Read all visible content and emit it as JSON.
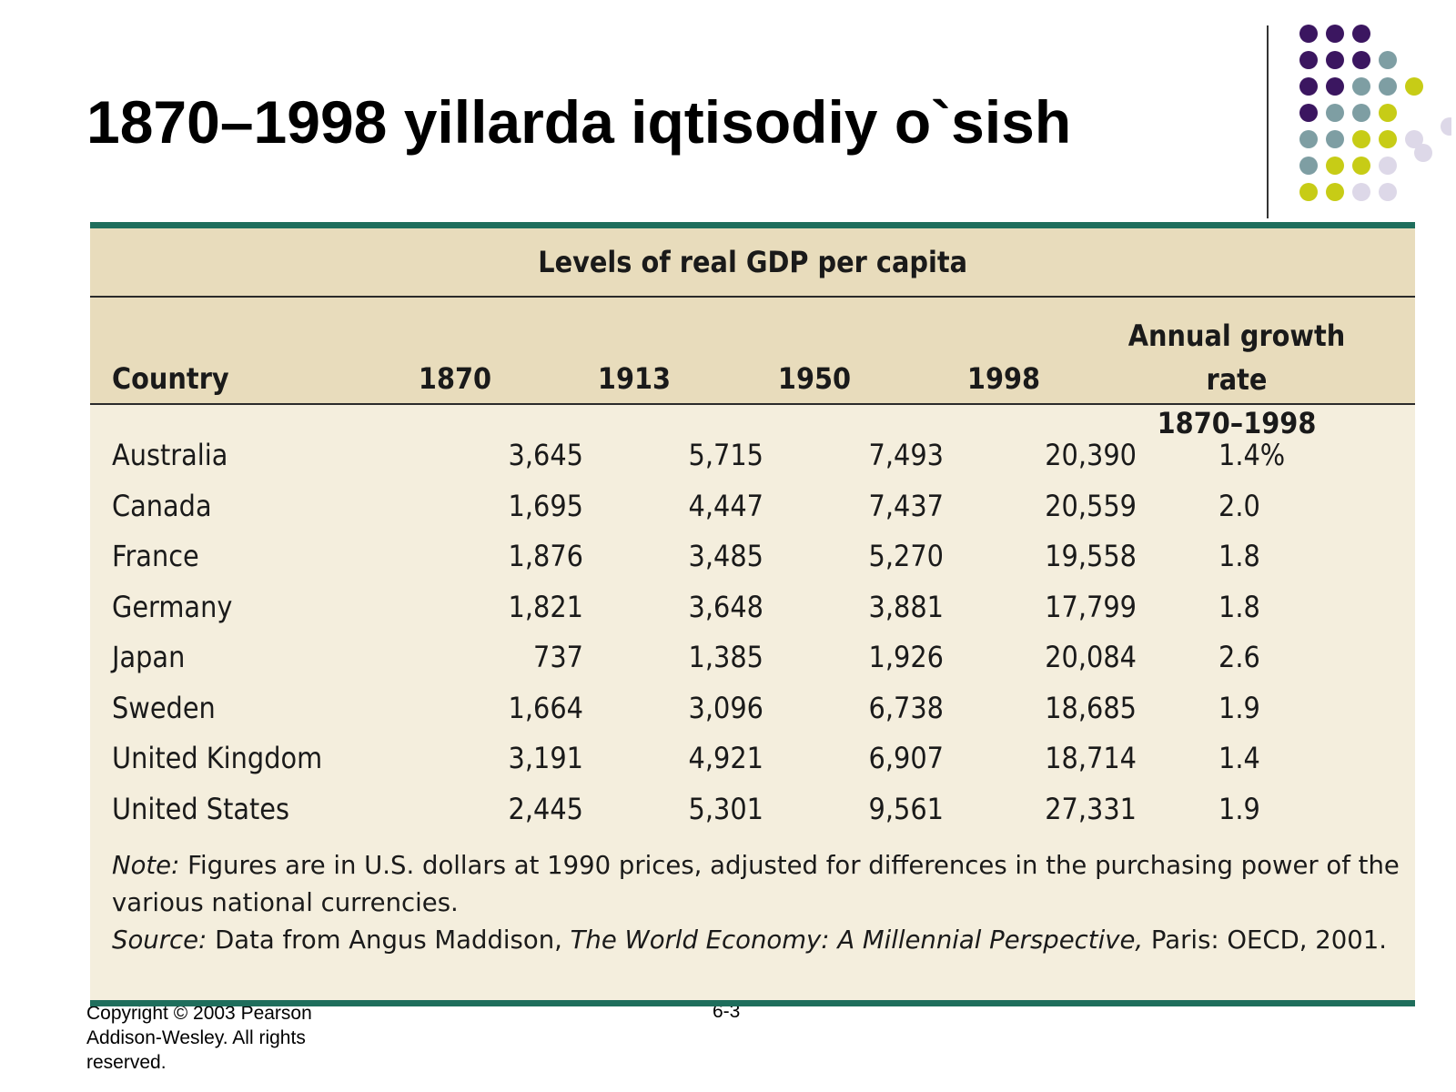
{
  "slide": {
    "title": "1870–1998 yillarda iqtisodiy o`sish",
    "footer": "Copyright © 2003 Pearson Addison-Wesley. All rights reserved.",
    "page_number": "6-3"
  },
  "decoration": {
    "dot_colors": {
      "purple": "#3b1660",
      "teal": "#7e9ea3",
      "lime": "#c7cc16",
      "lavender": "#ddd8e8"
    }
  },
  "table": {
    "title": "Levels of real GDP per capita",
    "headers": {
      "country": "Country",
      "years": [
        "1870",
        "1913",
        "1950",
        "1998"
      ],
      "growth_line1": "Annual growth rate",
      "growth_line2": "1870–1998"
    },
    "rows": [
      {
        "country": "Australia",
        "values": [
          "3,645",
          "5,715",
          "7,493",
          "20,390"
        ],
        "growth": "1.4%"
      },
      {
        "country": "Canada",
        "values": [
          "1,695",
          "4,447",
          "7,437",
          "20,559"
        ],
        "growth": "2.0"
      },
      {
        "country": "France",
        "values": [
          "1,876",
          "3,485",
          "5,270",
          "19,558"
        ],
        "growth": "1.8"
      },
      {
        "country": "Germany",
        "values": [
          "1,821",
          "3,648",
          "3,881",
          "17,799"
        ],
        "growth": "1.8"
      },
      {
        "country": "Japan",
        "values": [
          "737",
          "1,385",
          "1,926",
          "20,084"
        ],
        "growth": "2.6"
      },
      {
        "country": "Sweden",
        "values": [
          "1,664",
          "3,096",
          "6,738",
          "18,685"
        ],
        "growth": "1.9"
      },
      {
        "country": "United Kingdom",
        "values": [
          "3,191",
          "4,921",
          "6,907",
          "18,714"
        ],
        "growth": "1.4"
      },
      {
        "country": "United States",
        "values": [
          "2,445",
          "5,301",
          "9,561",
          "27,331"
        ],
        "growth": "1.9"
      }
    ],
    "note": {
      "label": "Note:",
      "text": "Figures are in U.S. dollars at 1990 prices, adjusted for differences in the purchasing power of the various national currencies."
    },
    "source": {
      "label": "Source:",
      "pre": "Data from Angus Maddison,",
      "book": "The World Economy: A Millennial Perspective,",
      "post": "Paris: OECD, 2001."
    }
  }
}
